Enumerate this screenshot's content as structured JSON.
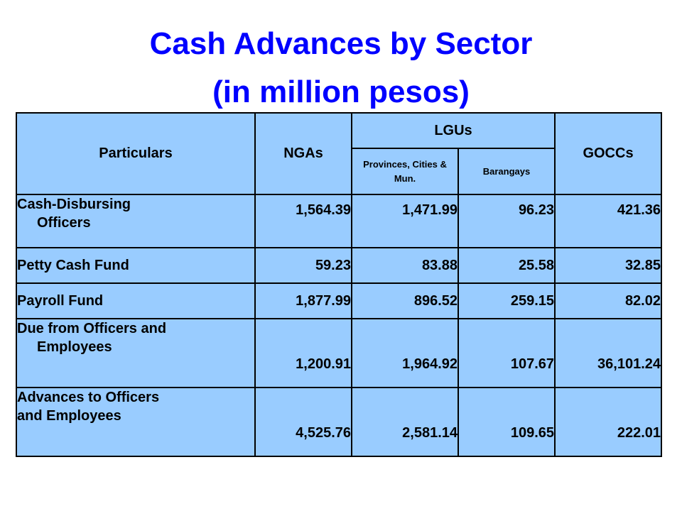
{
  "title": {
    "line1": "Cash Advances by Sector",
    "line2": "(in million pesos)"
  },
  "table": {
    "headers": {
      "particulars": "Particulars",
      "ngas": "NGAs",
      "lgus": "LGUs",
      "provinces": "Provinces, Cities & Mun.",
      "barangays": "Barangays",
      "goccs": "GOCCs"
    },
    "rows": [
      {
        "label_line1": "Cash-Disbursing",
        "label_line2": "Officers",
        "ngas": "1,564.39",
        "provinces": "1,471.99",
        "barangays": "96.23",
        "goccs": "421.36"
      },
      {
        "label_line1": "Petty Cash Fund",
        "ngas": "59.23",
        "provinces": "83.88",
        "barangays": "25.58",
        "goccs": "32.85"
      },
      {
        "label_line1": "Payroll Fund",
        "ngas": "1,877.99",
        "provinces": "896.52",
        "barangays": "259.15",
        "goccs": "82.02"
      },
      {
        "label_line1": "Due from Officers and",
        "label_line2": "Employees",
        "ngas": "1,200.91",
        "provinces": "1,964.92",
        "barangays": "107.67",
        "goccs": "36,101.24"
      },
      {
        "label_line1": "Advances to Officers",
        "label_line2": "and Employees",
        "ngas": "4,525.76",
        "provinces": "2,581.14",
        "barangays": "109.65",
        "goccs": "222.01"
      }
    ]
  }
}
